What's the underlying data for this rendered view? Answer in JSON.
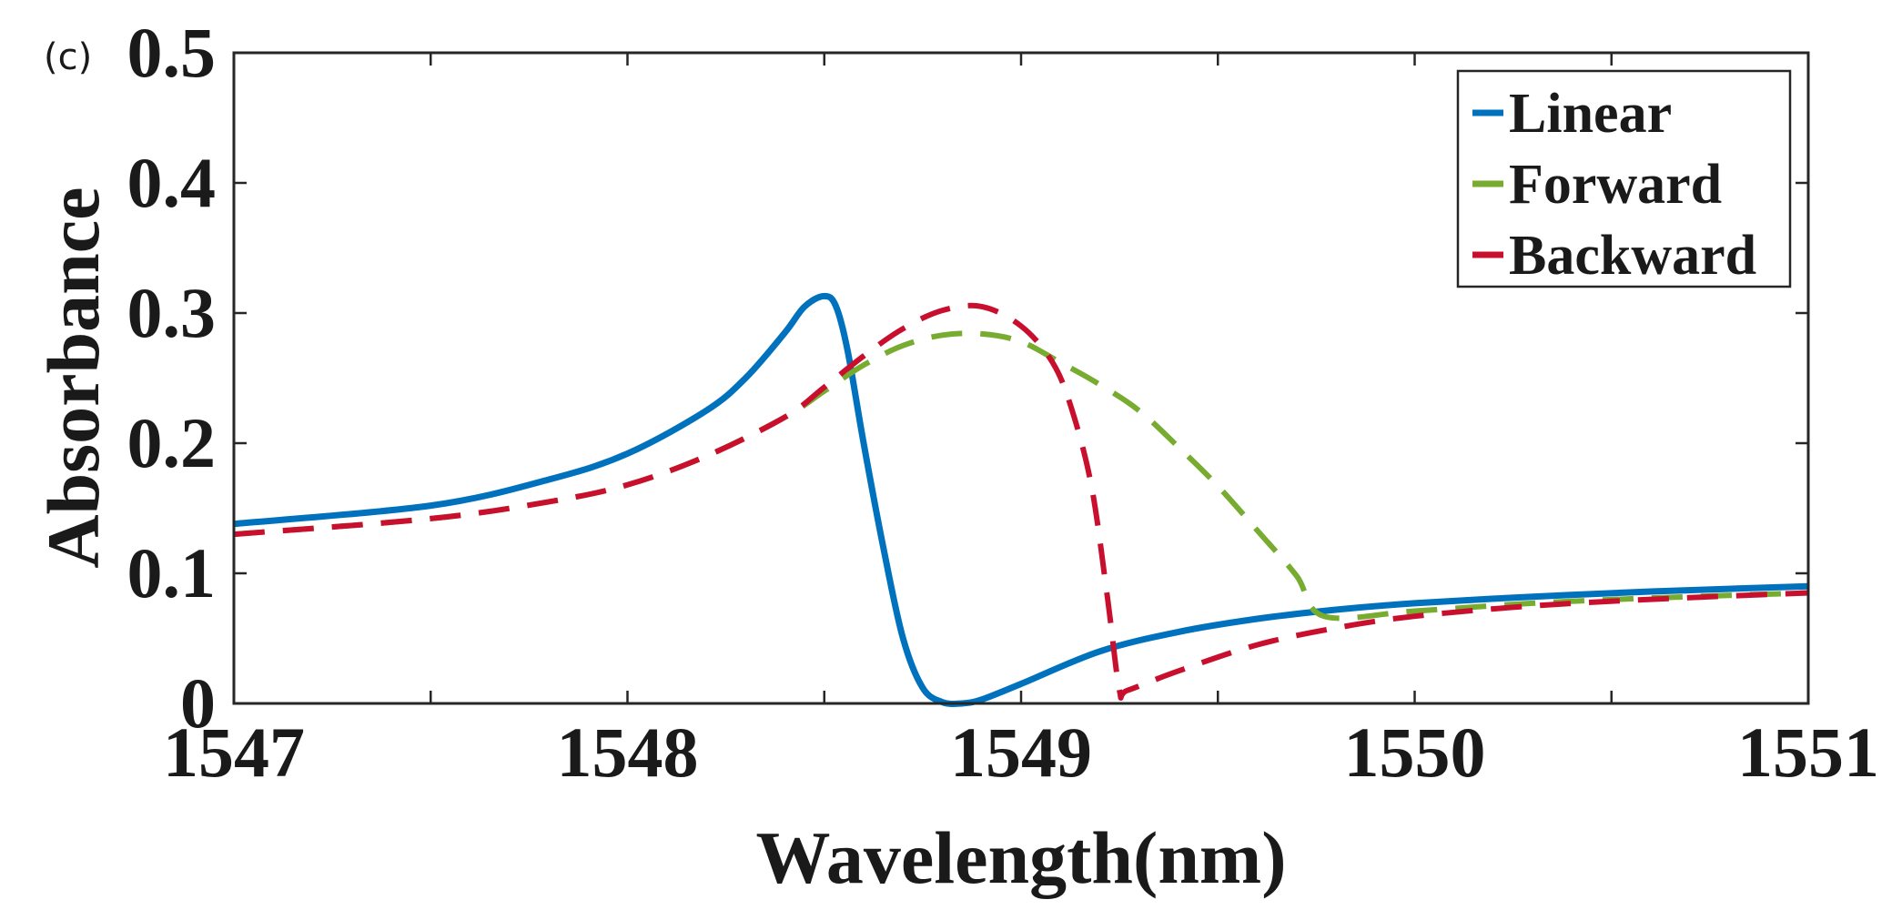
{
  "panel_label": "(c)",
  "chart_data": {
    "type": "line",
    "title": "",
    "xlabel": "Wavelength(nm)",
    "ylabel": "Absorbance",
    "xlim": [
      1547,
      1551
    ],
    "ylim": [
      0,
      0.5
    ],
    "xticks": [
      1547,
      1548,
      1549,
      1550,
      1551
    ],
    "xtick_labels": [
      "1547",
      "1548",
      "1549",
      "1550",
      "1551"
    ],
    "yticks": [
      0,
      0.1,
      0.2,
      0.3,
      0.4,
      0.5
    ],
    "ytick_labels": [
      "0",
      "0.1",
      "0.2",
      "0.3",
      "0.4",
      "0.5"
    ],
    "legend_position": "top-right",
    "series": [
      {
        "name": "Linear",
        "color": "#0072BD",
        "style": "solid",
        "x": [
          1547,
          1547.5,
          1547.8,
          1548.0,
          1548.2,
          1548.3,
          1548.4,
          1548.45,
          1548.5,
          1548.53,
          1548.56,
          1548.6,
          1548.65,
          1548.7,
          1548.75,
          1548.8,
          1548.85,
          1548.9,
          1549.0,
          1549.2,
          1549.4,
          1549.6,
          1549.8,
          1550.0,
          1550.3,
          1550.6,
          1551.0
        ],
        "y": [
          0.138,
          0.152,
          0.172,
          0.192,
          0.225,
          0.25,
          0.285,
          0.305,
          0.313,
          0.305,
          0.27,
          0.2,
          0.12,
          0.05,
          0.012,
          0.001,
          0.0,
          0.003,
          0.015,
          0.04,
          0.055,
          0.065,
          0.072,
          0.077,
          0.082,
          0.086,
          0.09
        ]
      },
      {
        "name": "Forward",
        "color": "#77AC30",
        "style": "dashed",
        "x": [
          1547,
          1547.5,
          1547.8,
          1548.0,
          1548.2,
          1548.4,
          1548.5,
          1548.6,
          1548.7,
          1548.8,
          1548.9,
          1549.0,
          1549.1,
          1549.2,
          1549.3,
          1549.4,
          1549.5,
          1549.6,
          1549.7,
          1549.77,
          1550.0,
          1550.3,
          1550.6,
          1551.0
        ],
        "y": [
          0.13,
          0.142,
          0.155,
          0.168,
          0.19,
          0.22,
          0.24,
          0.26,
          0.275,
          0.283,
          0.284,
          0.278,
          0.262,
          0.245,
          0.225,
          0.197,
          0.167,
          0.133,
          0.098,
          0.067,
          0.071,
          0.077,
          0.081,
          0.085
        ]
      },
      {
        "name": "Backward",
        "color": "#C8102E",
        "style": "dashed",
        "x": [
          1547,
          1547.5,
          1547.8,
          1548.0,
          1548.2,
          1548.4,
          1548.5,
          1548.6,
          1548.7,
          1548.8,
          1548.9,
          1549.0,
          1549.08,
          1549.13,
          1549.18,
          1549.22,
          1549.25,
          1549.27,
          1549.4,
          1549.6,
          1549.8,
          1550.0,
          1550.3,
          1550.6,
          1551.0
        ],
        "y": [
          0.13,
          0.142,
          0.155,
          0.168,
          0.19,
          0.22,
          0.243,
          0.267,
          0.288,
          0.302,
          0.305,
          0.29,
          0.262,
          0.225,
          0.165,
          0.08,
          0.01,
          0.01,
          0.025,
          0.045,
          0.058,
          0.067,
          0.075,
          0.08,
          0.085
        ]
      }
    ]
  }
}
